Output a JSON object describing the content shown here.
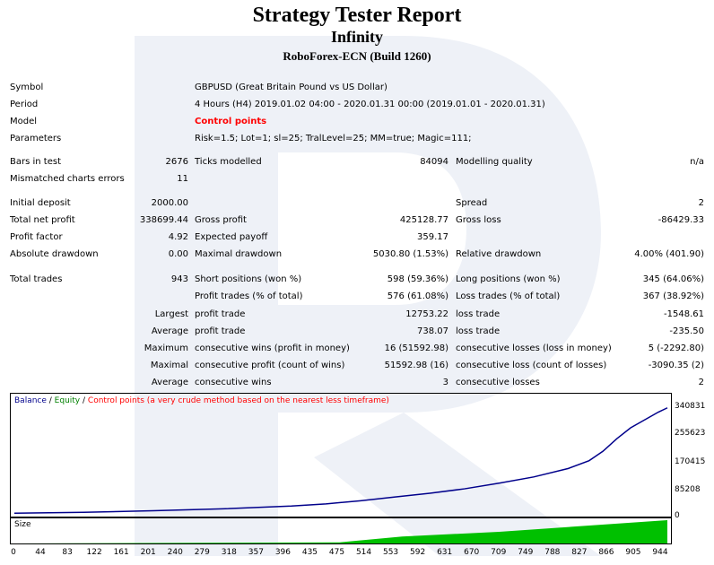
{
  "header": {
    "title": "Strategy Tester Report",
    "subtitle": "Infinity",
    "broker": "RoboForex-ECN (Build 1260)"
  },
  "info": {
    "symbol_label": "Symbol",
    "symbol_value": "GBPUSD (Great Britain Pound vs US Dollar)",
    "period_label": "Period",
    "period_value": "4 Hours (H4) 2019.01.02 04:00 - 2020.01.31 00:00 (2019.01.01 - 2020.01.31)",
    "model_label": "Model",
    "model_value": "Control points",
    "parameters_label": "Parameters",
    "parameters_value": "Risk=1.5; Lot=1; sl=25; TralLevel=25; MM=true; Magic=111;"
  },
  "stats": {
    "bars_label": "Bars in test",
    "bars_value": "2676",
    "ticks_label": "Ticks modelled",
    "ticks_value": "84094",
    "quality_label": "Modelling quality",
    "quality_value": "n/a",
    "mismatch_label": "Mismatched charts errors",
    "mismatch_value": "11",
    "deposit_label": "Initial deposit",
    "deposit_value": "2000.00",
    "spread_label": "Spread",
    "spread_value": "2",
    "netprofit_label": "Total net profit",
    "netprofit_value": "338699.44",
    "grossprofit_label": "Gross profit",
    "grossprofit_value": "425128.77",
    "grossloss_label": "Gross loss",
    "grossloss_value": "-86429.33",
    "pf_label": "Profit factor",
    "pf_value": "4.92",
    "payoff_label": "Expected payoff",
    "payoff_value": "359.17",
    "absdd_label": "Absolute drawdown",
    "absdd_value": "0.00",
    "maxdd_label": "Maximal drawdown",
    "maxdd_value": "5030.80 (1.53%)",
    "reldd_label": "Relative drawdown",
    "reldd_value": "4.00% (401.90)",
    "trades_label": "Total trades",
    "trades_value": "943",
    "short_label": "Short positions (won %)",
    "short_value": "598 (59.36%)",
    "long_label": "Long positions (won %)",
    "long_value": "345 (64.06%)",
    "pt_label": "Profit trades (% of total)",
    "pt_value": "576 (61.08%)",
    "lt_label": "Loss trades (% of total)",
    "lt_value": "367 (38.92%)",
    "largest_label": "Largest",
    "lp_label": "profit trade",
    "lp_value": "12753.22",
    "ll_label": "loss trade",
    "ll_value": "-1548.61",
    "average_label": "Average",
    "ap_label": "profit trade",
    "ap_value": "738.07",
    "al_label": "loss trade",
    "al_value": "-235.50",
    "maximum_label": "Maximum",
    "mcw_label": "consecutive wins (profit in money)",
    "mcw_value": "16 (51592.98)",
    "mcl_label": "consecutive losses (loss in money)",
    "mcl_value": "5 (-2292.80)",
    "maximal_label": "Maximal",
    "mcp_label": "consecutive profit (count of wins)",
    "mcp_value": "51592.98 (16)",
    "mclc_label": "consecutive loss (count of losses)",
    "mclc_value": "-3090.35 (2)",
    "average2_label": "Average",
    "acw_label": "consecutive wins",
    "acw_value": "3",
    "acl_label": "consecutive losses",
    "acl_value": "2"
  },
  "chart_data": {
    "type": "line",
    "legend": {
      "balance": "Balance",
      "sep1": " / ",
      "equity": "Equity",
      "sep2": " / ",
      "control": "Control points (a very crude method based on the nearest less timeframe)"
    },
    "size_label": "Size",
    "colors": {
      "balance": "#00008b",
      "equity": "#008000",
      "control": "#ff0000",
      "size": "#00c000"
    },
    "yticks": [
      "340831",
      "255623",
      "170415",
      "85208",
      "0"
    ],
    "xticks": [
      "0",
      "44",
      "83",
      "122",
      "161",
      "201",
      "240",
      "279",
      "318",
      "357",
      "396",
      "435",
      "475",
      "514",
      "553",
      "592",
      "631",
      "670",
      "709",
      "749",
      "788",
      "827",
      "866",
      "905",
      "944"
    ],
    "ylim": [
      0,
      340831
    ],
    "xlim": [
      0,
      943
    ],
    "series": [
      {
        "name": "Balance",
        "x": [
          0,
          100,
          200,
          300,
          400,
          450,
          500,
          550,
          600,
          650,
          700,
          750,
          800,
          830,
          850,
          870,
          890,
          910,
          930,
          943
        ],
        "y": [
          2000,
          5000,
          10000,
          16000,
          25000,
          32000,
          42000,
          54000,
          66000,
          80000,
          98000,
          118000,
          145000,
          170000,
          200000,
          240000,
          275000,
          300000,
          325000,
          338699
        ]
      }
    ],
    "size_series": {
      "x": [
        0,
        470,
        560,
        700,
        943
      ],
      "y": [
        0,
        0.05,
        0.3,
        0.5,
        1.0
      ]
    }
  }
}
